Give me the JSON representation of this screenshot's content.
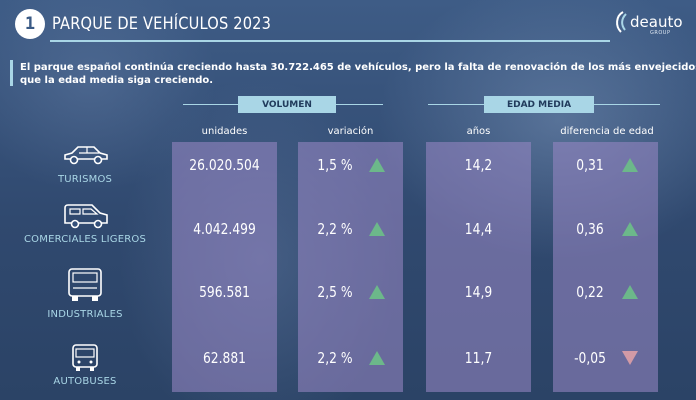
{
  "header": {
    "badge": "1",
    "title": "PARQUE DE VEHÍCULOS 2023",
    "logo_text": "deauto",
    "logo_sub": "GROUP"
  },
  "intro": {
    "line1_a": "El parque español continúa creciendo hasta ",
    "line1_b": "30.722.465",
    "line1_c": " de vehículos, pero la falta de renovación de los más envejecidos hace",
    "line2": "que la edad media siga creciendo."
  },
  "groups": {
    "volumen": "VOLUMEN",
    "edad_media": "EDAD MEDIA"
  },
  "columns": {
    "unidades": "unidades",
    "variacion": "variación",
    "anos": "años",
    "diferencia": "diferencia de edad"
  },
  "rows": [
    {
      "label": "TURISMOS",
      "icon": "car-icon",
      "unidades": "26.020.504",
      "variacion": "1,5 %",
      "var_trend": "up",
      "anos": "14,2",
      "diferencia": "0,31",
      "dif_trend": "up"
    },
    {
      "label": "COMERCIALES LIGEROS",
      "icon": "van-icon",
      "unidades": "4.042.499",
      "variacion": "2,2 %",
      "var_trend": "up",
      "anos": "14,4",
      "diferencia": "0,36",
      "dif_trend": "up"
    },
    {
      "label": "INDUSTRIALES",
      "icon": "truck-icon",
      "unidades": "596.581",
      "variacion": "2,5 %",
      "var_trend": "up",
      "anos": "14,9",
      "diferencia": "0,22",
      "dif_trend": "up"
    },
    {
      "label": "AUTOBUSES",
      "icon": "bus-icon",
      "unidades": "62.881",
      "variacion": "2,2 %",
      "var_trend": "up",
      "anos": "11,7",
      "diferencia": "-0,05",
      "dif_trend": "down"
    }
  ],
  "colors": {
    "accent": "#a9d6e6",
    "column_fill": "#9687c3",
    "up": "#6cb88a",
    "down": "#d29aa6"
  }
}
